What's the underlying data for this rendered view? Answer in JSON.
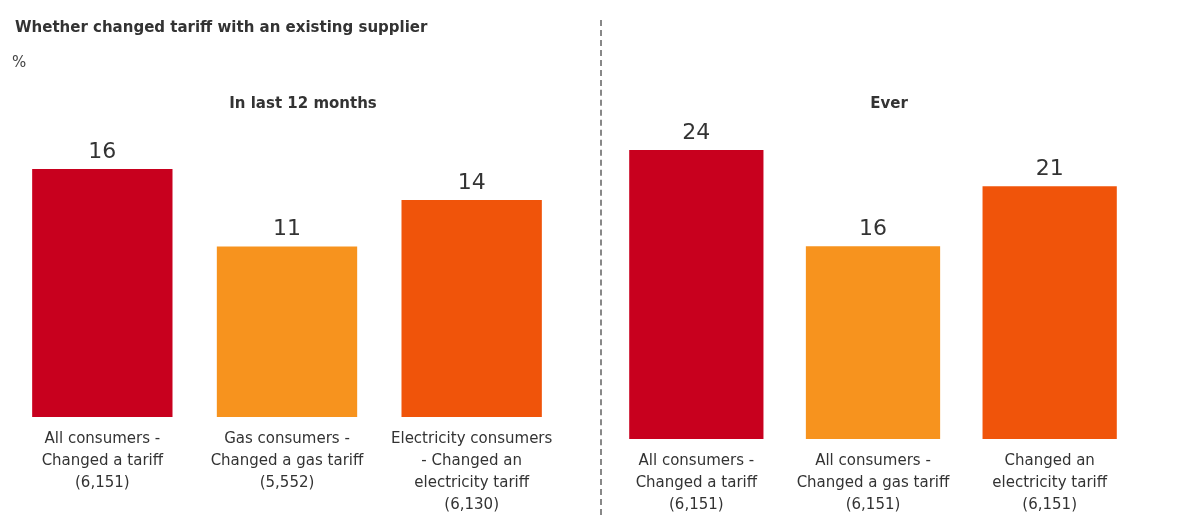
{
  "chart_data": [
    {
      "type": "bar",
      "title": "Whether changed tariff with an existing supplier",
      "ylabel": "%",
      "subtitle": "In last 12 months",
      "categories": [
        "All consumers - Changed a tariff (6,151)",
        "Gas consumers - Changed a gas tariff (5,552)",
        "Electricity consumers - Changed an electricity tariff (6,130)"
      ],
      "values": [
        16,
        11,
        14
      ],
      "colors": [
        "#c8001e",
        "#f7931e",
        "#f0540a"
      ],
      "data_labels": true
    },
    {
      "type": "bar",
      "title": "Ever",
      "categories": [
        "All consumers - Changed a tariff (6,151)",
        "All consumers - Changed a gas tariff (6,151)",
        "Changed an electricity tariff (6,151)"
      ],
      "values": [
        24,
        16,
        21
      ],
      "colors": [
        "#c8001e",
        "#f7931e",
        "#f0540a"
      ],
      "data_labels": true
    }
  ]
}
